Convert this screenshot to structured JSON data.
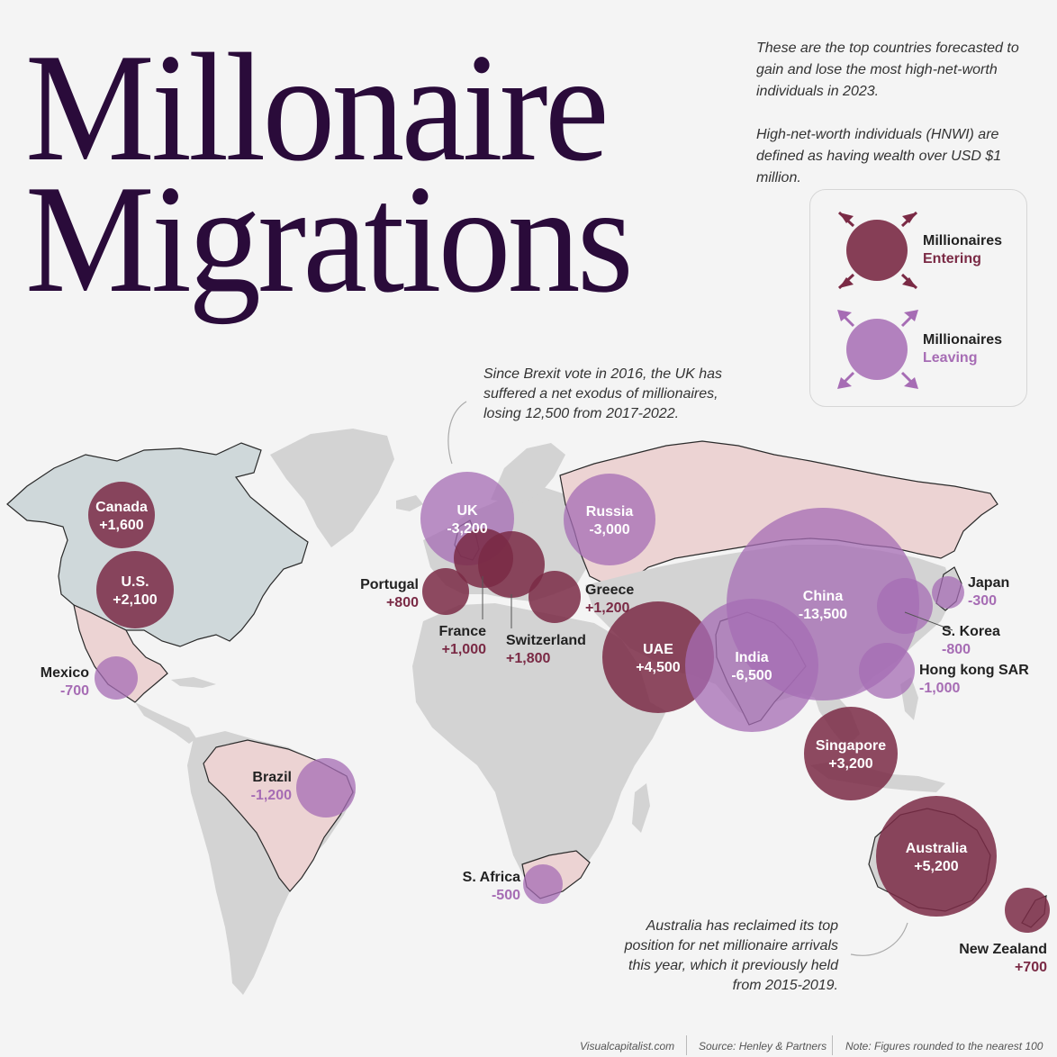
{
  "title": {
    "line1": "Millonaire",
    "line2": "Migrations"
  },
  "intro": [
    "These are the top countries forecasted to gain and lose the most high-net-worth individuals in 2023.",
    "High-net-worth individuals (HNWI) are defined as having wealth over USD $1 million."
  ],
  "legend": {
    "entering": {
      "line1": "Millionaires",
      "line2": "Entering",
      "color": "#7a2a45"
    },
    "leaving": {
      "line1": "Millionaires",
      "line2": "Leaving",
      "color": "#a66cb4"
    }
  },
  "annotations": {
    "uk": "Since Brexit vote in 2016, the UK has suffered a net exodus of millionaires, losing 12,500 from 2017-2022.",
    "australia": "Australia has reclaimed its top position for net millionaire arrivals this year, which it previously held from 2015-2019."
  },
  "countries": [
    {
      "name": "Canada",
      "value": "+1,600",
      "type": "entering"
    },
    {
      "name": "U.S.",
      "value": "+2,100",
      "type": "entering"
    },
    {
      "name": "Mexico",
      "value": "-700",
      "type": "leaving"
    },
    {
      "name": "Brazil",
      "value": "-1,200",
      "type": "leaving"
    },
    {
      "name": "UK",
      "value": "-3,200",
      "type": "leaving"
    },
    {
      "name": "Portugal",
      "value": "+800",
      "type": "entering"
    },
    {
      "name": "France",
      "value": "+1,000",
      "type": "entering"
    },
    {
      "name": "Switzerland",
      "value": "+1,800",
      "type": "entering"
    },
    {
      "name": "Greece",
      "value": "+1,200",
      "type": "entering"
    },
    {
      "name": "Russia",
      "value": "-3,000",
      "type": "leaving"
    },
    {
      "name": "UAE",
      "value": "+4,500",
      "type": "entering"
    },
    {
      "name": "India",
      "value": "-6,500",
      "type": "leaving"
    },
    {
      "name": "China",
      "value": "-13,500",
      "type": "leaving"
    },
    {
      "name": "Japan",
      "value": "-300",
      "type": "leaving"
    },
    {
      "name": "S. Korea",
      "value": "-800",
      "type": "leaving"
    },
    {
      "name": "Hong kong SAR",
      "value": "-1,000",
      "type": "leaving"
    },
    {
      "name": "Singapore",
      "value": "+3,200",
      "type": "entering"
    },
    {
      "name": "S. Africa",
      "value": "-500",
      "type": "leaving"
    },
    {
      "name": "Australia",
      "value": "+5,200",
      "type": "entering"
    },
    {
      "name": "New Zealand",
      "value": "+700",
      "type": "entering"
    }
  ],
  "footer": {
    "site": "Visualcapitalist.com",
    "source": "Source: Henley & Partners",
    "note": "Note: Figures rounded to the nearest 100"
  },
  "colors": {
    "background": "#f4f4f4",
    "land_gray": "#d3d3d3",
    "land_highlight_pink": "#ecd3d3",
    "land_highlight_blue": "#cfd8da",
    "title": "#2a0b3a",
    "entering": "#7a2a45",
    "leaving": "#a66cb4"
  }
}
